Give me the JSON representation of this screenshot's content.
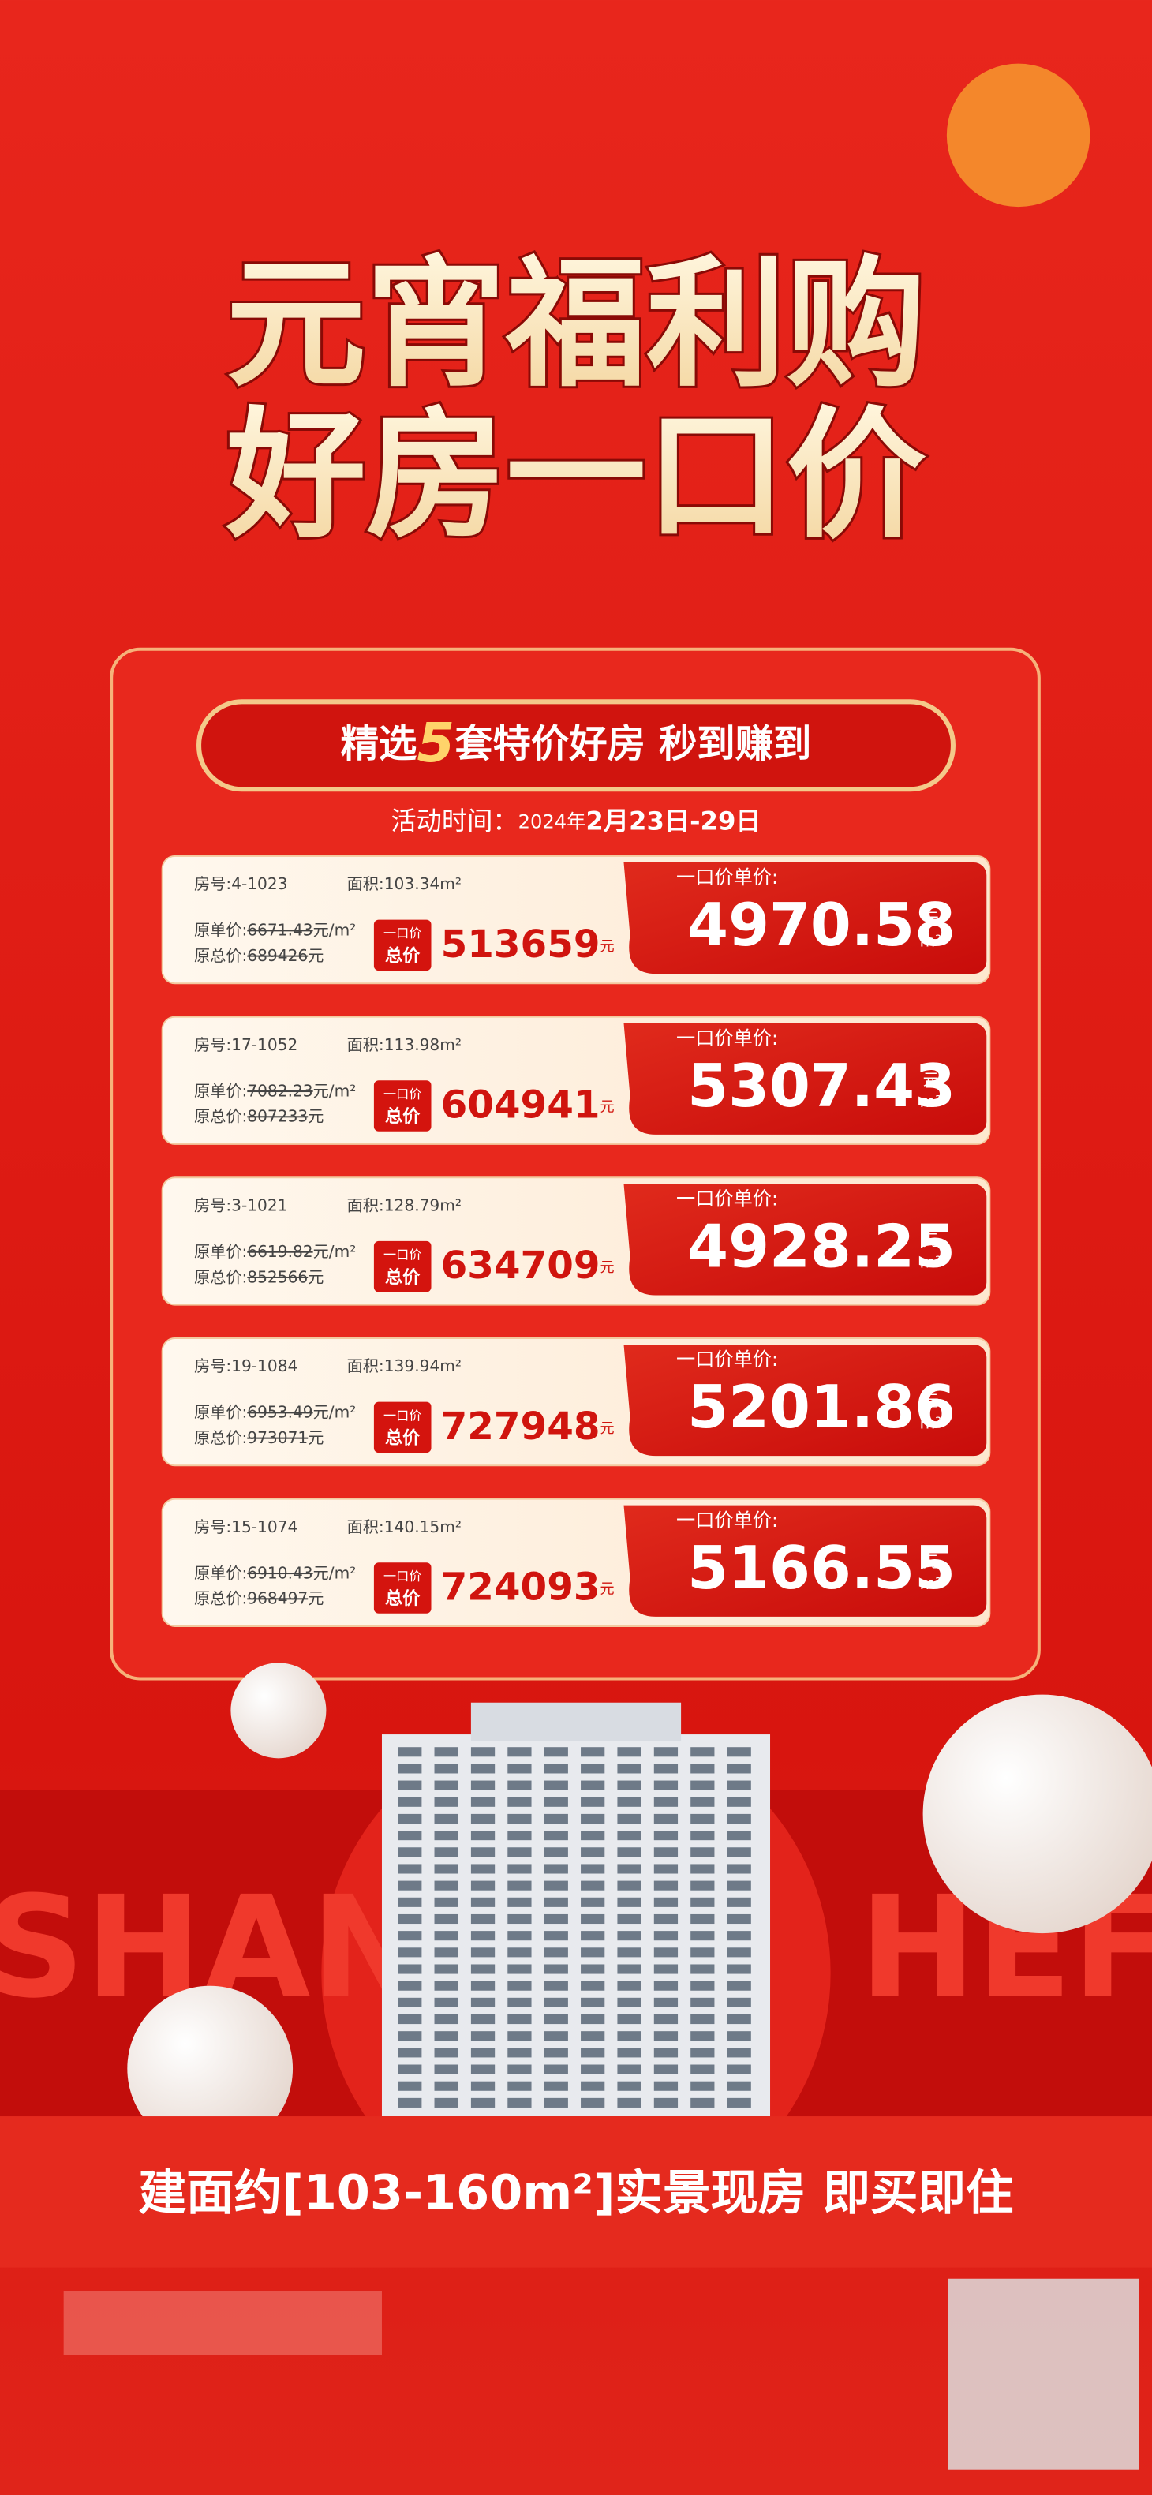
{
  "header": {
    "title_line1": "元宵福利购",
    "title_line2": "好房一口价"
  },
  "banner": {
    "prefix": "精选",
    "count": "5",
    "suffix": "套特价好房 秒到赚到"
  },
  "activity": {
    "label": "活动时间：",
    "year": "2024年",
    "dates": "2月23日-29日"
  },
  "labels": {
    "room": "房号:",
    "area": "面积:",
    "orig_unit": "原单价:",
    "orig_total": "原总价:",
    "tag_top": "一口价",
    "tag_bottom": "总价",
    "unit_price": "一口价单价:",
    "yuan": "元",
    "per_m2": "元/m²",
    "m2": "m²"
  },
  "cards": [
    {
      "room": "4-1023",
      "area": "103.34m²",
      "orig_unit": "6671.43",
      "orig_total": "689426",
      "total": "513659",
      "unit_price": "4970.58"
    },
    {
      "room": "17-1052",
      "area": "113.98m²",
      "orig_unit": "7082.23",
      "orig_total": "807233",
      "total": "604941",
      "unit_price": "5307.43"
    },
    {
      "room": "3-1021",
      "area": "128.79m²",
      "orig_unit": "6619.82",
      "orig_total": "852566",
      "total": "634709",
      "unit_price": "4928.25"
    },
    {
      "room": "19-1084",
      "area": "139.94m²",
      "orig_unit": "6953.49",
      "orig_total": "973071",
      "total": "727948",
      "unit_price": "5201.86"
    },
    {
      "room": "15-1074",
      "area": "140.15m²",
      "orig_unit": "6910.43",
      "orig_total": "968497",
      "total": "724093",
      "unit_price": "5166.55"
    }
  ],
  "background": {
    "left_word": "SHANG",
    "right_word": "HEFEI"
  },
  "footer": {
    "slogan": "建面约[103-160m²]实景现房 即买即住"
  }
}
